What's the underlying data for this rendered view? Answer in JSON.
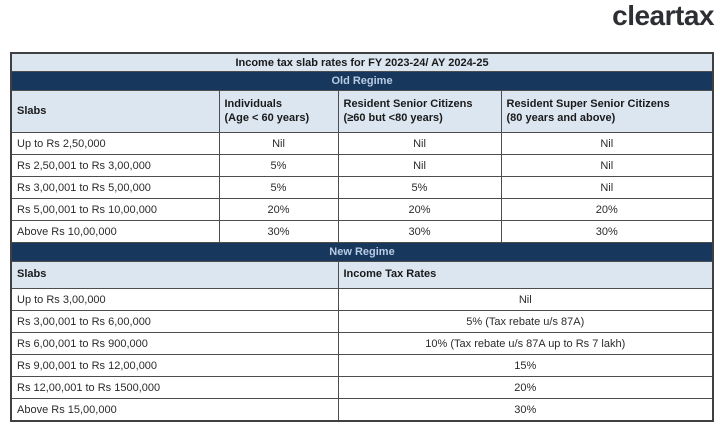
{
  "brand": {
    "logo_text": "cleartax",
    "logo_color": "#2e2f34"
  },
  "colors": {
    "section_bar_bg": "#17375d",
    "section_bar_text": "#b8cce4",
    "header_bg": "#dce6f1",
    "border": "#4d4d4d"
  },
  "table": {
    "title": "Income tax slab rates for FY 2023-24/ AY 2024-25",
    "old_regime": {
      "section_label": "Old Regime",
      "columns": [
        {
          "line1": "Slabs",
          "line2": ""
        },
        {
          "line1": "Individuals",
          "line2": "(Age < 60 years)"
        },
        {
          "line1": "Resident Senior Citizens",
          "line2": "(≥60 but <80 years)"
        },
        {
          "line1": "Resident Super Senior Citizens",
          "line2": "(80 years and above)"
        }
      ],
      "rows": [
        [
          "Up to Rs 2,50,000",
          "Nil",
          "Nil",
          "Nil"
        ],
        [
          "Rs 2,50,001 to Rs 3,00,000",
          "5%",
          "Nil",
          "Nil"
        ],
        [
          "Rs 3,00,001 to Rs 5,00,000",
          "5%",
          "5%",
          "Nil"
        ],
        [
          "Rs 5,00,001 to Rs 10,00,000",
          "20%",
          "20%",
          "20%"
        ],
        [
          "Above Rs 10,00,000",
          "30%",
          "30%",
          "30%"
        ]
      ]
    },
    "new_regime": {
      "section_label": "New Regime",
      "columns": [
        "Slabs",
        "Income Tax Rates"
      ],
      "rows": [
        [
          "Up to Rs 3,00,000",
          "Nil"
        ],
        [
          "Rs 3,00,001 to Rs 6,00,000",
          "5% (Tax rebate u/s 87A)"
        ],
        [
          "Rs 6,00,001 to Rs 900,000",
          "10% (Tax rebate u/s 87A up to Rs 7 lakh)"
        ],
        [
          "Rs 9,00,001 to Rs 12,00,000",
          "15%"
        ],
        [
          "Rs 12,00,001 to Rs 1500,000",
          "20%"
        ],
        [
          "Above Rs 15,00,000",
          "30%"
        ]
      ]
    }
  }
}
